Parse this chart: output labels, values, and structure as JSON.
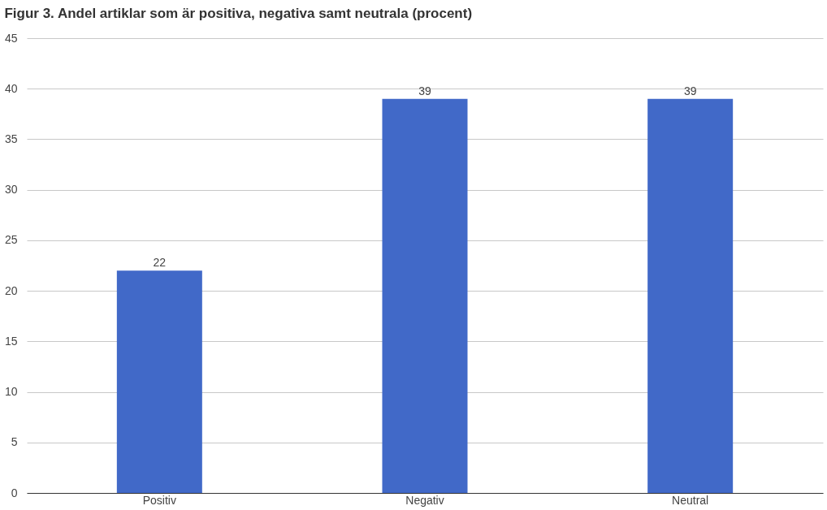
{
  "chart_data": {
    "type": "bar",
    "title": "Figur 3. Andel artiklar som är positiva, negativa samt neutrala (procent)",
    "categories": [
      "Positiv",
      "Negativ",
      "Neutral"
    ],
    "values": [
      22,
      39,
      39
    ],
    "color": "#4169c8",
    "ylim": [
      0,
      45
    ],
    "yticks": [
      0,
      5,
      10,
      15,
      20,
      25,
      30,
      35,
      40,
      45
    ],
    "grid": "y",
    "data_labels": true
  }
}
